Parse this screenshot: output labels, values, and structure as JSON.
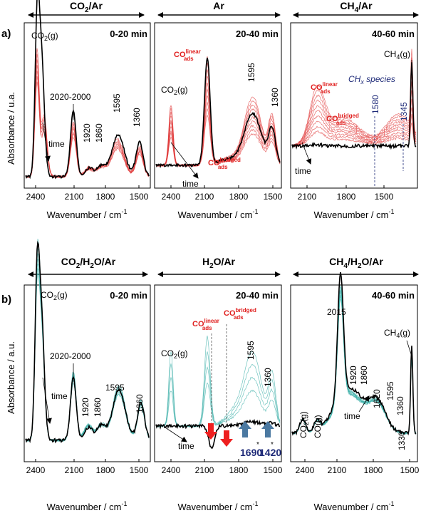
{
  "figure": {
    "rows": [
      {
        "label": "a)",
        "y_axis_label": "Absorbance / u.a.",
        "x_axis_label": "Wavenumber / cm",
        "x_axis_sup": "-1",
        "panels": [
          {
            "title": "CO2/Ar",
            "time_range": "0-20 min",
            "ticks": [
              "2400",
              "2100",
              "1800",
              "1500"
            ],
            "annotations": [
              "CO2(g)",
              "2020-2000",
              "1920",
              "1860",
              "1595",
              "1360",
              "time"
            ]
          },
          {
            "title": "Ar",
            "time_range": "20-40 min",
            "ticks": [
              "2400",
              "2100",
              "1800",
              "1500"
            ],
            "annotations": [
              "CO2(g)",
              "CO linear ads",
              "1595",
              "1360",
              "CO bridged ads",
              "time"
            ]
          },
          {
            "title": "CH4/Ar",
            "time_range": "40-60 min",
            "ticks": [
              "2100",
              "1800",
              "1500"
            ],
            "annotations": [
              "CH4(g)",
              "CO linear ads",
              "CHx species",
              "CO bridged ads",
              "1580",
              "1345",
              "time"
            ]
          }
        ]
      },
      {
        "label": "b)",
        "y_axis_label": "Absorbance / a.u.",
        "x_axis_label": "Wavenumber / cm",
        "x_axis_sup": "-1",
        "panels": [
          {
            "title": "CO2/H2O/Ar",
            "time_range": "0-20 min",
            "ticks": [
              "2400",
              "2100",
              "1800",
              "1500"
            ],
            "annotations": [
              "CO2(g)",
              "2020-2000",
              "1920",
              "1860",
              "1595",
              "1360",
              "time"
            ]
          },
          {
            "title": "H2O/Ar",
            "time_range": "20-40 min",
            "ticks": [
              "2400",
              "2100",
              "1800",
              "1500"
            ],
            "annotations": [
              "CO2(g)",
              "CO linear ads",
              "CO bridged ads",
              "1595",
              "1360",
              "1690",
              "1420",
              "time"
            ]
          },
          {
            "title": "CH4/H2O/Ar",
            "time_range": "40-60 min",
            "ticks": [
              "2400",
              "2100",
              "1800",
              "1500"
            ],
            "annotations": [
              "2015",
              "CH4(g)",
              "1920",
              "1860",
              "1620",
              "1595",
              "1360",
              "CO2(g)",
              "CO(g)",
              "1330",
              "time"
            ]
          }
        ]
      }
    ],
    "colors": {
      "spectrum_a": "#e03b3b",
      "spectrum_b": "#3fb0aa",
      "final": "#000000",
      "label_red": "#e0201f",
      "label_navy": "#1e2a78",
      "arrow_down": "#ee1f1f",
      "arrow_up": "#4b79a1"
    }
  }
}
